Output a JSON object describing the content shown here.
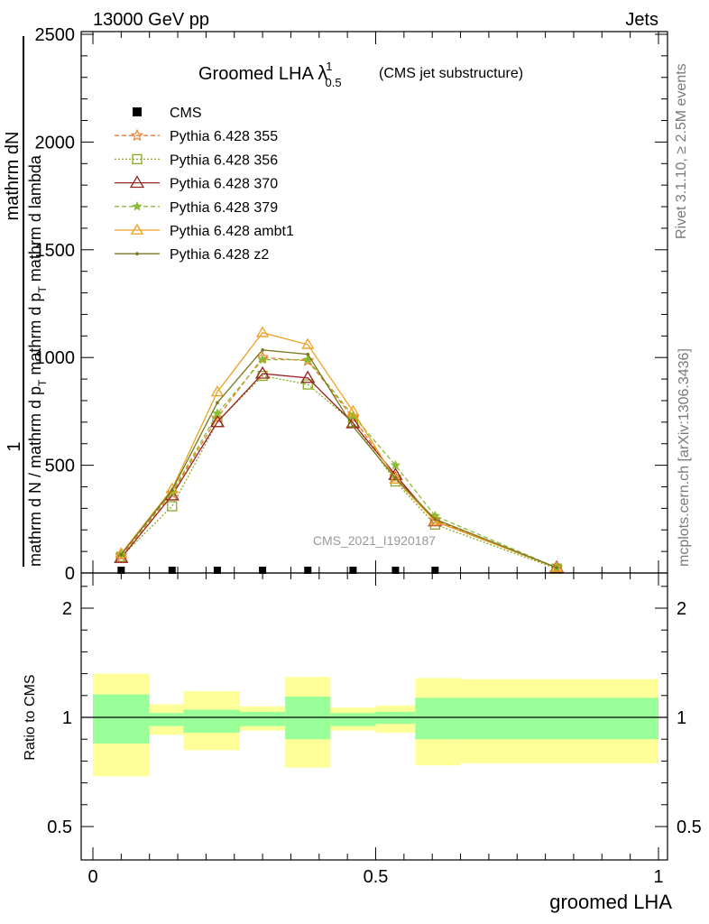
{
  "header": {
    "left": "13000 GeV pp",
    "right": "Jets",
    "title_main": "Groomed LHA ",
    "title_lambda": "λ",
    "title_sup": "1",
    "title_sub": "0.5",
    "title_note": "(CMS jet substructure)"
  },
  "ylabel_main": {
    "one": "1",
    "num": "mathrm dN",
    "den": "mathrm d N / mathrm d p",
    "den_sub": "T",
    "den2": "mathrm d p",
    "den2_sub": "T",
    "den3": "mathrm d lambda",
    "overlap1": "mathrm d N / mathrm d p",
    "overlap2": "mathrm d p"
  },
  "side_text": {
    "rivet": "Rivet 3.1.10, ≥ 2.5M events",
    "mcplots": "mcplots.cern.ch [arXiv:1306.3436]"
  },
  "watermark": "CMS_2021_I1920187",
  "ratio_ylabel": "Ratio to CMS",
  "xlabel": "groomed LHA",
  "colors": {
    "CMS": "#000000",
    "p355": "#ee7722",
    "p356": "#88aa22",
    "p370": "#992222",
    "p379": "#88bb33",
    "ambt1": "#eea022",
    "z2": "#777722",
    "band_inner": "#99ff99",
    "band_outer": "#ffff99"
  },
  "chart_data": [
    {
      "type": "line",
      "title": "Groomed LHA λ^1_0.5 (CMS jet substructure)",
      "xlabel": "groomed LHA",
      "ylabel": "1 / (mathrm d N / mathrm d p_T) mathrm d p_T mathrm d N / mathrm d lambda",
      "xlim": [
        0,
        1
      ],
      "ylim": [
        0,
        2500
      ],
      "yticks": [
        0,
        500,
        1000,
        1500,
        2000,
        2500
      ],
      "ytick_labels": [
        "0",
        "500",
        "1000",
        "1500",
        "2000",
        "2500"
      ],
      "legend_position": "top-left",
      "bin_edges": [
        0.0,
        0.1,
        0.16,
        0.26,
        0.34,
        0.42,
        0.5,
        0.57,
        0.65,
        1.0
      ],
      "x": [
        0.05,
        0.14,
        0.22,
        0.3,
        0.38,
        0.46,
        0.535,
        0.605,
        0.82
      ],
      "series": [
        {
          "name": "CMS",
          "style": "data",
          "x": [
            0.05,
            0.14,
            0.22,
            0.3,
            0.38,
            0.46,
            0.535,
            0.605
          ],
          "values": [
            0,
            0,
            0,
            0,
            0,
            0,
            0,
            0
          ]
        },
        {
          "name": "Pythia 6.428 355",
          "style": "p355",
          "values": [
            80,
            370,
            720,
            1000,
            985,
            720,
            445,
            245,
            25
          ]
        },
        {
          "name": "Pythia 6.428 356",
          "style": "p356",
          "values": [
            75,
            310,
            700,
            915,
            875,
            700,
            425,
            225,
            20
          ]
        },
        {
          "name": "Pythia 6.428 370",
          "style": "p370",
          "values": [
            70,
            360,
            700,
            925,
            905,
            695,
            455,
            240,
            25
          ]
        },
        {
          "name": "Pythia 6.428 379",
          "style": "p379",
          "values": [
            85,
            375,
            740,
            990,
            990,
            730,
            500,
            265,
            25
          ]
        },
        {
          "name": "Pythia 6.428 ambt1",
          "style": "ambt1",
          "values": [
            90,
            390,
            840,
            1115,
            1060,
            750,
            435,
            240,
            25
          ]
        },
        {
          "name": "Pythia 6.428 z2",
          "style": "z2",
          "values": [
            85,
            385,
            790,
            1035,
            1015,
            680,
            440,
            250,
            25
          ]
        }
      ]
    },
    {
      "type": "area",
      "ylabel": "Ratio to CMS",
      "xlabel": "groomed LHA",
      "xlim": [
        0,
        1
      ],
      "ylim": [
        0.4,
        2.3
      ],
      "yticks": [
        0.5,
        1,
        2
      ],
      "ytick_labels": [
        "0.5",
        "1",
        "2"
      ],
      "xticks": [
        0,
        0.5,
        1
      ],
      "xtick_labels": [
        "0",
        "0.5",
        "1"
      ],
      "reference_line": 1,
      "bin_edges": [
        0.0,
        0.1,
        0.16,
        0.26,
        0.34,
        0.42,
        0.5,
        0.57,
        0.65,
        1.0
      ],
      "inner_band": [
        [
          0.88,
          1.21
        ],
        [
          0.96,
          1.04
        ],
        [
          0.93,
          1.07
        ],
        [
          0.96,
          1.05
        ],
        [
          0.9,
          1.19
        ],
        [
          0.96,
          1.04
        ],
        [
          0.97,
          1.05
        ],
        [
          0.9,
          1.18
        ],
        [
          0.9,
          1.18
        ]
      ],
      "outer_band": [
        [
          0.73,
          1.4
        ],
        [
          0.92,
          1.12
        ],
        [
          0.85,
          1.24
        ],
        [
          0.94,
          1.1
        ],
        [
          0.77,
          1.37
        ],
        [
          0.94,
          1.09
        ],
        [
          0.93,
          1.11
        ],
        [
          0.78,
          1.36
        ],
        [
          0.79,
          1.35
        ]
      ]
    }
  ]
}
